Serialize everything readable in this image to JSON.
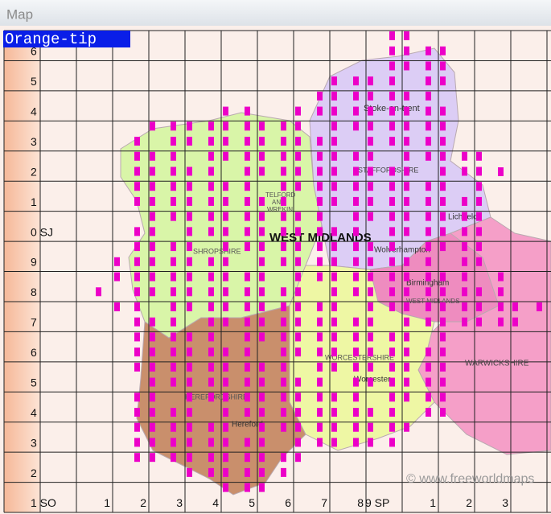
{
  "window": {
    "title": "Map"
  },
  "species": "Orange-tip",
  "grid": {
    "row_labels": [
      "6",
      "5",
      "4",
      "3",
      "2",
      "1",
      "0 SJ",
      "9",
      "8",
      "7",
      "6",
      "5",
      "4",
      "3",
      "2",
      "1 SO"
    ],
    "column_labels": [
      "1",
      "2",
      "3",
      "4",
      "5",
      "6",
      "7",
      "8",
      "9 SP",
      "1",
      "2",
      "3"
    ]
  },
  "places": [
    "Stoke-on-trent",
    "STAFFORDSHIRE",
    "TELFORD",
    "AND",
    "WREKIN",
    "Lichfield",
    "WEST MIDLANDS",
    "SHROPSHIRE",
    "Wolverhampton",
    "Birmingham",
    "WEST MIDLANDS",
    "WARWICKSHIRE",
    "WORCESTERSHIRE",
    "Worcester",
    "HEREFORDSHIRE",
    "Hereford",
    "© www.freeworldmaps"
  ]
}
